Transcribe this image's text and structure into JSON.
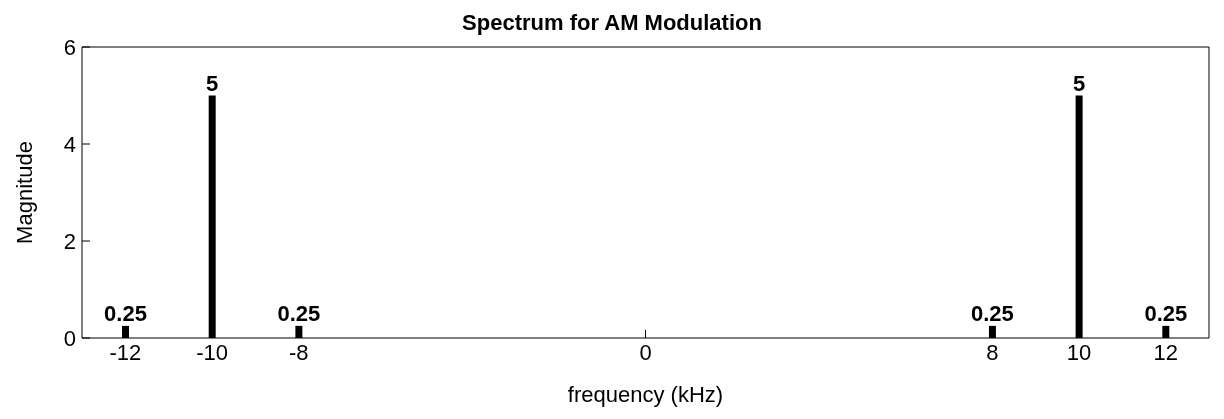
{
  "chart_data": {
    "type": "bar",
    "title": "Spectrum for AM Modulation",
    "xlabel": "frequency (kHz)",
    "ylabel": "Magnitude",
    "x": [
      -12,
      -10,
      -8,
      8,
      10,
      12
    ],
    "values": [
      0.25,
      5,
      0.25,
      0.25,
      5,
      0.25
    ],
    "color": "#000000",
    "xlim": [
      -13,
      13
    ],
    "xticks": [
      -12,
      -10,
      -8,
      0,
      8,
      10,
      12
    ],
    "ylim": [
      0,
      6
    ],
    "yticks": [
      0,
      2,
      4,
      6
    ],
    "data_labels": true,
    "grid": false,
    "legend": false
  }
}
